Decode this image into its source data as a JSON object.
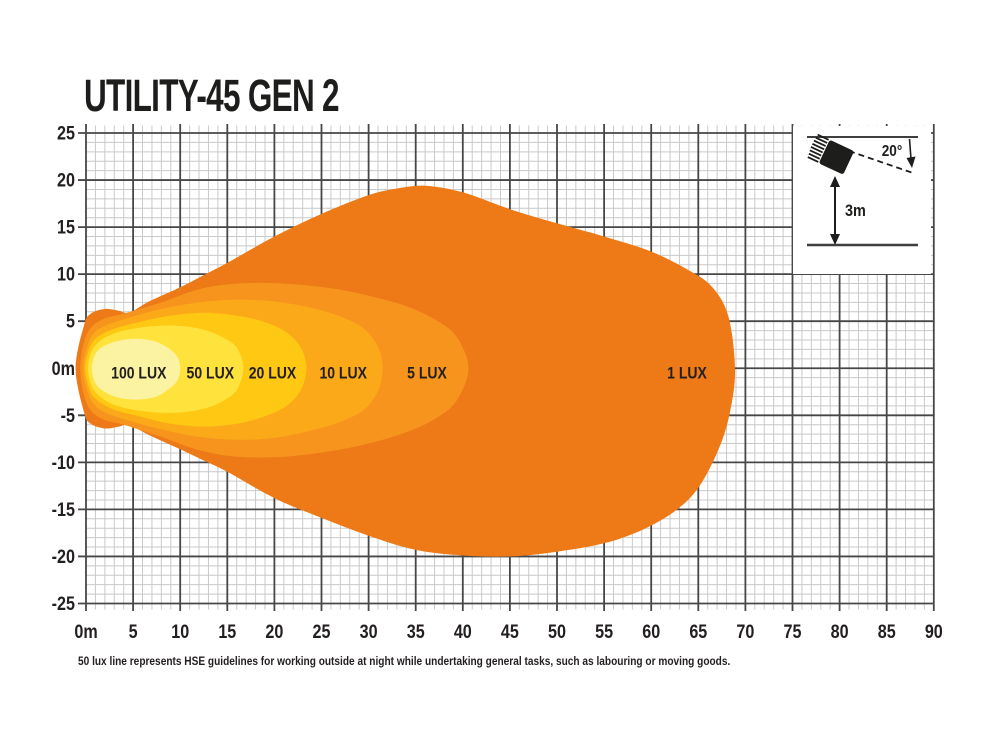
{
  "title": "UTILITY-45 GEN 2",
  "footer_note": "50 lux line represents HSE guidelines for working outside at night while undertaking general tasks, such as labouring or moving goods.",
  "inset": {
    "angle_label": "20°",
    "height_label": "3m"
  },
  "colors": {
    "text": "#231f20",
    "grid_minor": "#c9c9c9",
    "grid_major": "#474747",
    "inset_line": "#3f3f3f",
    "ink": "#1d1d1b",
    "background": "#ffffff"
  },
  "chart_data": {
    "type": "contour",
    "subtype": "isolux-beam-pattern",
    "title": "UTILITY-45 GEN 2",
    "grid": true,
    "x_axis": {
      "min": 0,
      "max": 90,
      "major_step": 5,
      "minor_step": 1,
      "tick_labels": [
        "0m",
        "5",
        "10",
        "15",
        "20",
        "25",
        "30",
        "35",
        "40",
        "45",
        "50",
        "55",
        "60",
        "65",
        "70",
        "75",
        "80",
        "85",
        "90"
      ]
    },
    "y_axis": {
      "min": -25,
      "max": 25,
      "major_step": 5,
      "minor_step": 1,
      "tick_labels": [
        "25",
        "20",
        "15",
        "10",
        "5",
        "0m",
        "-5",
        "-10",
        "-15",
        "-20",
        "-25"
      ]
    },
    "contours": [
      {
        "label": "1 LUX",
        "lux": 1,
        "color": "#ed7a17",
        "label_pos": [
          63.8,
          -0.5
        ],
        "points": [
          [
            -1.1,
            0
          ],
          [
            -0.2,
            4.6
          ],
          [
            0.5,
            5.8
          ],
          [
            2,
            6.3
          ],
          [
            3.5,
            6.1
          ],
          [
            4.6,
            5.9
          ],
          [
            6.5,
            7.0
          ],
          [
            8,
            7.7
          ],
          [
            10,
            8.6
          ],
          [
            12.5,
            9.9
          ],
          [
            15,
            11.2
          ],
          [
            20,
            14.0
          ],
          [
            25,
            16.4
          ],
          [
            30,
            18.4
          ],
          [
            33,
            19.1
          ],
          [
            36,
            19.4
          ],
          [
            40,
            18.7
          ],
          [
            45,
            16.9
          ],
          [
            50,
            15.4
          ],
          [
            55,
            14.0
          ],
          [
            60,
            12.4
          ],
          [
            64,
            10.4
          ],
          [
            66.5,
            8.6
          ],
          [
            68.2,
            5.5
          ],
          [
            68.9,
            0
          ],
          [
            68.4,
            -4.5
          ],
          [
            67.2,
            -8.5
          ],
          [
            65,
            -12.7
          ],
          [
            62.5,
            -15.2
          ],
          [
            59,
            -17.2
          ],
          [
            55,
            -18.6
          ],
          [
            50,
            -19.5
          ],
          [
            45,
            -20.0
          ],
          [
            40,
            -19.9
          ],
          [
            35,
            -19.3
          ],
          [
            30,
            -17.8
          ],
          [
            25,
            -15.9
          ],
          [
            20,
            -13.8
          ],
          [
            15,
            -11.0
          ],
          [
            12.5,
            -9.8
          ],
          [
            10,
            -8.6
          ],
          [
            8,
            -7.7
          ],
          [
            6.5,
            -7.0
          ],
          [
            4.6,
            -6.0
          ],
          [
            3.5,
            -6.2
          ],
          [
            2,
            -6.4
          ],
          [
            0.5,
            -5.9
          ],
          [
            -0.2,
            -4.7
          ]
        ]
      },
      {
        "label": "5 LUX",
        "lux": 5,
        "color": "#f6941e",
        "label_pos": [
          36.2,
          -0.5
        ],
        "points": [
          [
            -0.6,
            0
          ],
          [
            -0.2,
            2.8
          ],
          [
            0.6,
            4.4
          ],
          [
            2,
            5.3
          ],
          [
            4,
            5.8
          ],
          [
            8,
            7.0
          ],
          [
            12,
            8.4
          ],
          [
            16,
            9.0
          ],
          [
            21,
            9.0
          ],
          [
            26,
            8.5
          ],
          [
            30,
            7.7
          ],
          [
            34,
            6.6
          ],
          [
            37,
            5.2
          ],
          [
            39.3,
            3.4
          ],
          [
            40.6,
            0
          ],
          [
            39.3,
            -3.5
          ],
          [
            37,
            -5.4
          ],
          [
            34,
            -6.8
          ],
          [
            30,
            -8.0
          ],
          [
            26,
            -8.8
          ],
          [
            21,
            -9.4
          ],
          [
            16,
            -9.4
          ],
          [
            12,
            -8.7
          ],
          [
            8,
            -7.3
          ],
          [
            4,
            -6.0
          ],
          [
            2,
            -5.5
          ],
          [
            0.6,
            -4.6
          ],
          [
            -0.2,
            -2.9
          ]
        ]
      },
      {
        "label": "10 LUX",
        "lux": 10,
        "color": "#fba919",
        "label_pos": [
          27.3,
          -0.5
        ],
        "points": [
          [
            -0.3,
            0
          ],
          [
            0.2,
            2.5
          ],
          [
            1,
            3.9
          ],
          [
            2.5,
            4.7
          ],
          [
            5,
            5.5
          ],
          [
            8,
            6.3
          ],
          [
            12,
            7.0
          ],
          [
            16,
            7.3
          ],
          [
            20,
            7.1
          ],
          [
            24,
            6.4
          ],
          [
            27,
            5.5
          ],
          [
            29.5,
            4.2
          ],
          [
            31,
            2.3
          ],
          [
            31.5,
            0
          ],
          [
            31,
            -2.4
          ],
          [
            29.5,
            -4.4
          ],
          [
            27,
            -5.7
          ],
          [
            24,
            -6.6
          ],
          [
            20,
            -7.4
          ],
          [
            16,
            -7.6
          ],
          [
            12,
            -7.3
          ],
          [
            8,
            -6.5
          ],
          [
            5,
            -5.7
          ],
          [
            2.5,
            -4.9
          ],
          [
            1,
            -4.0
          ],
          [
            0.2,
            -2.6
          ]
        ]
      },
      {
        "label": "20 LUX",
        "lux": 20,
        "color": "#fec813",
        "label_pos": [
          19.8,
          -0.5
        ],
        "points": [
          [
            -0.1,
            0
          ],
          [
            0.4,
            2.2
          ],
          [
            1.2,
            3.3
          ],
          [
            3,
            4.2
          ],
          [
            6,
            5.0
          ],
          [
            9,
            5.6
          ],
          [
            12.5,
            5.9
          ],
          [
            16,
            5.6
          ],
          [
            19,
            4.9
          ],
          [
            21.3,
            3.8
          ],
          [
            22.8,
            2.2
          ],
          [
            23.4,
            0
          ],
          [
            22.8,
            -2.3
          ],
          [
            21.3,
            -4.0
          ],
          [
            19,
            -5.1
          ],
          [
            16,
            -5.9
          ],
          [
            12.5,
            -6.2
          ],
          [
            9,
            -5.9
          ],
          [
            6,
            -5.2
          ],
          [
            3,
            -4.4
          ],
          [
            1.2,
            -3.4
          ],
          [
            0.4,
            -2.3
          ]
        ]
      },
      {
        "label": "50 LUX",
        "lux": 50,
        "color": "#ffe33c",
        "label_pos": [
          13.2,
          -0.5
        ],
        "points": [
          [
            0.2,
            0
          ],
          [
            0.6,
            1.8
          ],
          [
            1.5,
            2.9
          ],
          [
            3,
            3.7
          ],
          [
            5,
            4.2
          ],
          [
            7.5,
            4.5
          ],
          [
            10,
            4.5
          ],
          [
            12.5,
            4.1
          ],
          [
            14.5,
            3.3
          ],
          [
            16,
            2.2
          ],
          [
            16.7,
            0
          ],
          [
            16,
            -2.3
          ],
          [
            14.5,
            -3.5
          ],
          [
            12.5,
            -4.3
          ],
          [
            10,
            -4.7
          ],
          [
            7.5,
            -4.7
          ],
          [
            5,
            -4.4
          ],
          [
            3,
            -3.9
          ],
          [
            1.5,
            -3.0
          ],
          [
            0.6,
            -1.9
          ]
        ]
      },
      {
        "label": "100 LUX",
        "lux": 100,
        "color": "#fbf3a1",
        "label_pos": [
          5.6,
          -0.5
        ],
        "points": [
          [
            0.6,
            0
          ],
          [
            1.0,
            1.5
          ],
          [
            1.8,
            2.3
          ],
          [
            3,
            2.8
          ],
          [
            4.5,
            3.1
          ],
          [
            6,
            3.1
          ],
          [
            7.5,
            2.8
          ],
          [
            8.8,
            2.1
          ],
          [
            9.7,
            1.2
          ],
          [
            10.0,
            0
          ],
          [
            9.7,
            -1.3
          ],
          [
            8.8,
            -2.2
          ],
          [
            7.5,
            -3.0
          ],
          [
            6,
            -3.3
          ],
          [
            4.5,
            -3.3
          ],
          [
            3,
            -3.0
          ],
          [
            1.8,
            -2.4
          ],
          [
            1.0,
            -1.6
          ]
        ]
      }
    ],
    "legend_position": "in-plot-labels",
    "annotations": {
      "mounting_height": "3m",
      "tilt_angle": "20°"
    }
  }
}
